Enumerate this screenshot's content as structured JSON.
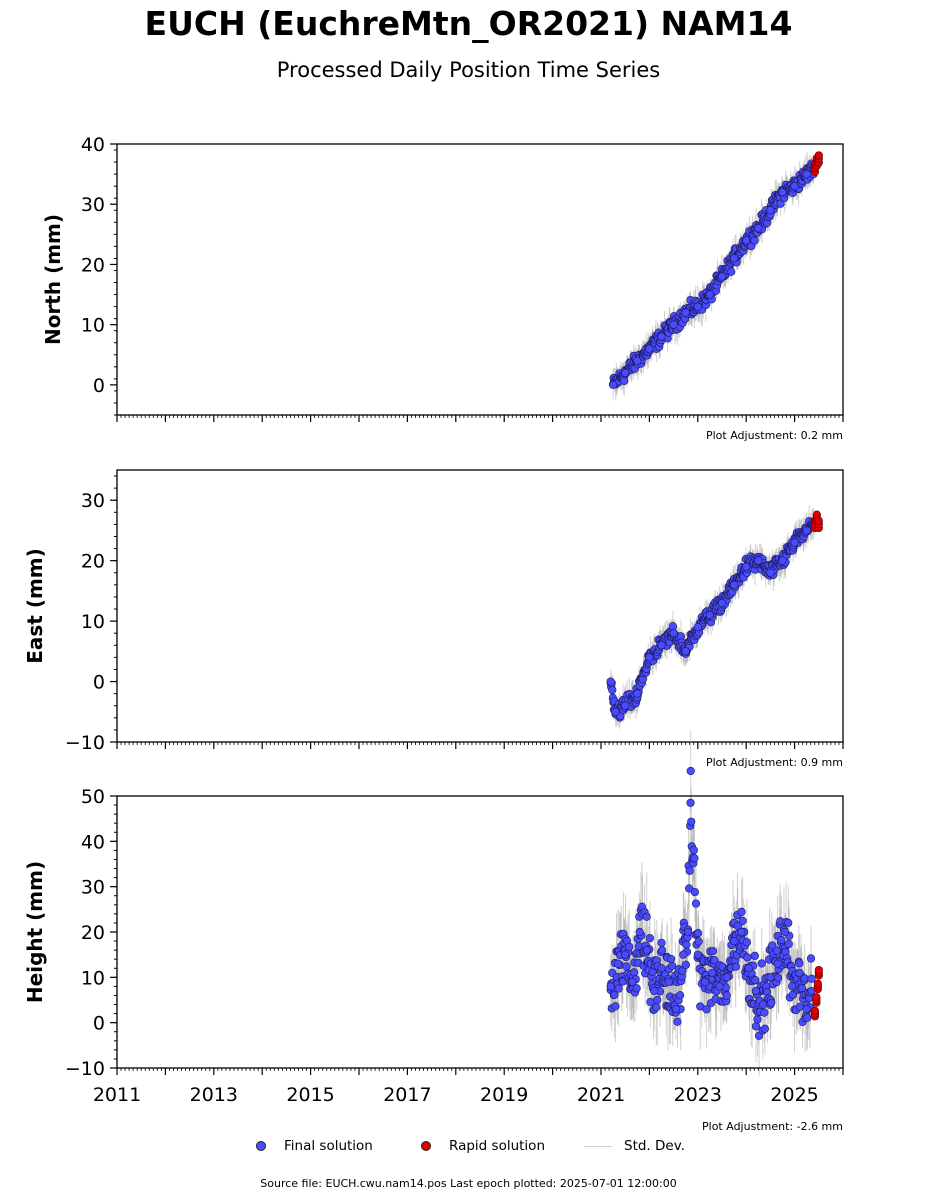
{
  "title": "EUCH (EuchreMtn_OR2021) NAM14",
  "subtitle": "Processed Daily Position Time Series",
  "legend": {
    "final": "Final solution",
    "rapid": "Rapid solution",
    "std": "Std. Dev."
  },
  "source": "Source file: EUCH.cwu.nam14.pos  Last epoch plotted: 2025-07-01 12:00:00",
  "colors": {
    "final": "#4a4aff",
    "rapid": "#e00000",
    "stddev": "#9a9a9a"
  },
  "chart_data": [
    {
      "type": "scatter",
      "ylabel": "North (mm)",
      "ylim": [
        -5,
        40
      ],
      "yticks": [
        0,
        10,
        20,
        30,
        40
      ],
      "xlim": [
        2011,
        2026
      ],
      "xticks": [],
      "adjustment": "Plot Adjustment: 0.2 mm",
      "series": [
        {
          "name": "Final solution",
          "x": [
            2021.25,
            2021.5,
            2021.75,
            2022.0,
            2022.25,
            2022.5,
            2022.75,
            2023.0,
            2023.25,
            2023.5,
            2023.75,
            2024.0,
            2024.25,
            2024.5,
            2024.75,
            2025.0,
            2025.25,
            2025.4
          ],
          "y": [
            0,
            2,
            4,
            6,
            8,
            10,
            12,
            13,
            15,
            18,
            21,
            24,
            26,
            29,
            32,
            33,
            35,
            36
          ]
        },
        {
          "name": "Rapid solution",
          "x": [
            2025.42,
            2025.46,
            2025.5
          ],
          "y": [
            36,
            37,
            37.5
          ]
        }
      ]
    },
    {
      "type": "scatter",
      "ylabel": "East (mm)",
      "ylim": [
        -10,
        35
      ],
      "yticks": [
        -10,
        0,
        10,
        20,
        30
      ],
      "xlim": [
        2011,
        2026
      ],
      "xticks": [],
      "adjustment": "Plot Adjustment: 0.9 mm",
      "series": [
        {
          "name": "Final solution",
          "x": [
            2021.2,
            2021.3,
            2021.5,
            2021.75,
            2022.0,
            2022.25,
            2022.5,
            2022.75,
            2023.0,
            2023.25,
            2023.5,
            2023.75,
            2024.0,
            2024.25,
            2024.5,
            2024.75,
            2025.0,
            2025.25,
            2025.4
          ],
          "y": [
            0,
            -5,
            -4,
            -2,
            4,
            6,
            8,
            5,
            9,
            11,
            13,
            16,
            19,
            20,
            18,
            20,
            23,
            25,
            26
          ]
        },
        {
          "name": "Rapid solution",
          "x": [
            2025.42,
            2025.46,
            2025.5
          ],
          "y": [
            26,
            27,
            26
          ]
        }
      ]
    },
    {
      "type": "scatter",
      "ylabel": "Height (mm)",
      "ylim": [
        -10,
        50
      ],
      "yticks": [
        -10,
        0,
        10,
        20,
        30,
        40,
        50
      ],
      "xlim": [
        2011,
        2026
      ],
      "xticks": [
        2011,
        2013,
        2015,
        2017,
        2019,
        2021,
        2023,
        2025
      ],
      "adjustment": "Plot Adjustment: -2.6 mm",
      "series": [
        {
          "name": "Final solution",
          "x": [
            2021.2,
            2021.35,
            2021.5,
            2021.65,
            2021.8,
            2021.95,
            2022.1,
            2022.25,
            2022.4,
            2022.55,
            2022.7,
            2022.8,
            2022.85,
            2023.0,
            2023.15,
            2023.3,
            2023.45,
            2023.6,
            2023.75,
            2023.9,
            2024.05,
            2024.2,
            2024.35,
            2024.5,
            2024.65,
            2024.8,
            2024.95,
            2025.1,
            2025.25,
            2025.35
          ],
          "y": [
            8,
            13,
            15,
            9,
            20,
            16,
            7,
            12,
            9,
            3,
            15,
            20,
            48.5,
            15,
            9,
            11,
            8,
            10,
            18,
            20,
            12,
            7,
            4,
            10,
            13,
            20,
            8,
            11,
            3,
            7
          ]
        },
        {
          "name": "Rapid solution",
          "x": [
            2025.42,
            2025.45,
            2025.48,
            2025.5
          ],
          "y": [
            2,
            5,
            8,
            11
          ]
        }
      ]
    }
  ]
}
